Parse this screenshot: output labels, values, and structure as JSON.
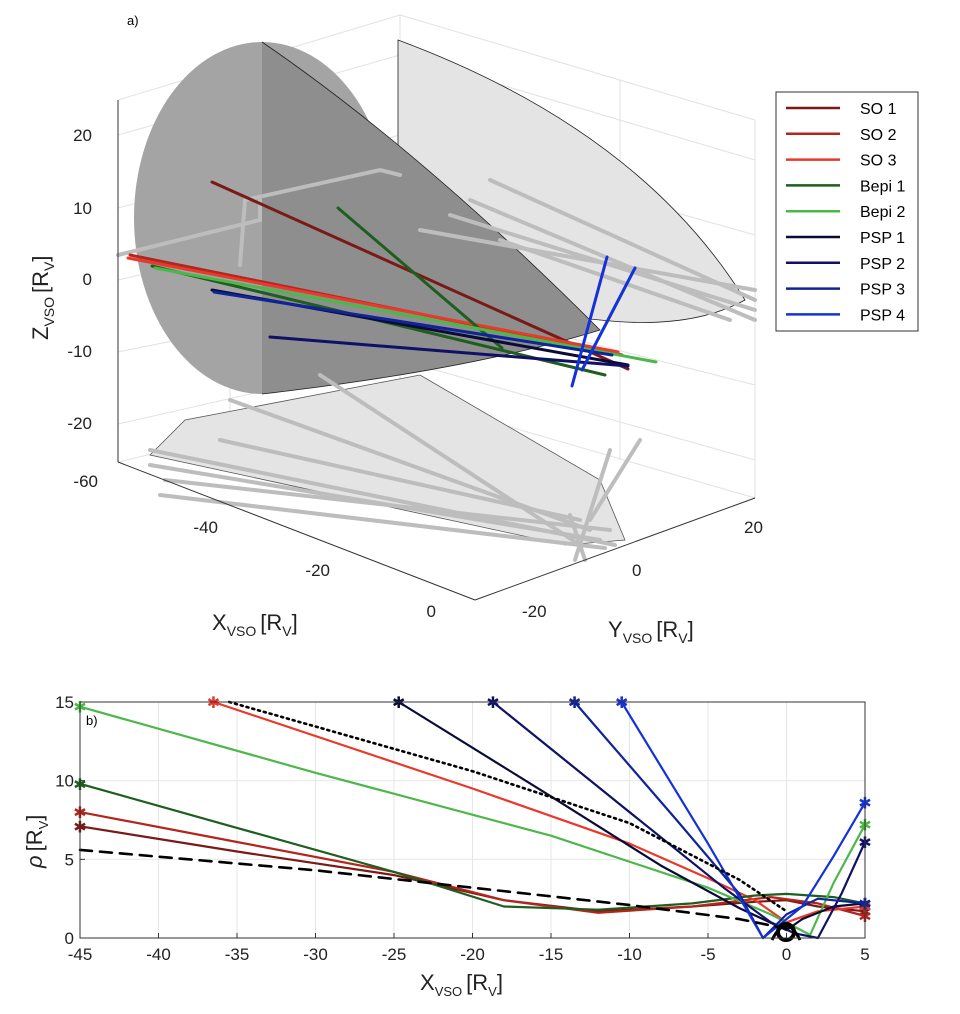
{
  "panel_a": {
    "label": "a)",
    "x_label": "X",
    "x_sub": "VSO",
    "x_unit": "[R",
    "x_unit_sub": "V",
    "x_close": "]",
    "y_label": "Y",
    "y_sub": "VSO",
    "z_label": "Z",
    "z_sub": "VSO",
    "z_ticks": [
      "20",
      "10",
      "0",
      "-10",
      "-20"
    ],
    "x_ticks": [
      "-60",
      "-40",
      "-20",
      "0"
    ],
    "y_ticks": [
      "-20",
      "0",
      "20"
    ]
  },
  "legend": [
    {
      "name": "SO 1",
      "color": "#7a1a16"
    },
    {
      "name": "SO 2",
      "color": "#b3261e"
    },
    {
      "name": "SO 3",
      "color": "#e8392c"
    },
    {
      "name": "Bepi 1",
      "color": "#1e5e1e"
    },
    {
      "name": "Bepi 2",
      "color": "#4db84a"
    },
    {
      "name": "PSP 1",
      "color": "#0b0b3a"
    },
    {
      "name": "PSP 2",
      "color": "#101066"
    },
    {
      "name": "PSP 3",
      "color": "#10249a"
    },
    {
      "name": "PSP 4",
      "color": "#1432d8"
    }
  ],
  "panel_b": {
    "label": "b)",
    "x_label": "X",
    "x_sub": "VSO",
    "y_label": "ρ",
    "unit_open": "[R",
    "unit_sub": "V",
    "unit_close": "]"
  },
  "chart_data": [
    {
      "type": "line",
      "title": "",
      "projection": "3d",
      "xlabel": "X_VSO [R_V]",
      "ylabel": "Y_VSO [R_V]",
      "zlabel": "Z_VSO [R_V]",
      "xlim": [
        -60,
        5
      ],
      "ylim": [
        -25,
        25
      ],
      "zlim": [
        -25,
        25
      ],
      "grid": true,
      "legend_position": "outside-right",
      "series": [
        {
          "name": "SO 1"
        },
        {
          "name": "SO 2"
        },
        {
          "name": "SO 3"
        },
        {
          "name": "Bepi 1"
        },
        {
          "name": "Bepi 2"
        },
        {
          "name": "PSP 1"
        },
        {
          "name": "PSP 2"
        },
        {
          "name": "PSP 3"
        },
        {
          "name": "PSP 4"
        }
      ]
    },
    {
      "type": "line",
      "title": "",
      "xlabel": "X_VSO [R_V]",
      "ylabel": "ρ [R_V]",
      "xlim": [
        -45,
        5
      ],
      "ylim": [
        0,
        15
      ],
      "grid": true,
      "xticks": [
        -45,
        -40,
        -35,
        -30,
        -25,
        -20,
        -15,
        -10,
        -5,
        0,
        5
      ],
      "yticks": [
        0,
        5,
        10,
        15
      ],
      "series": [
        {
          "name": "SO 1",
          "color": "#7a1a16",
          "points": [
            [
              -45,
              7.1
            ],
            [
              -35,
              5.5
            ],
            [
              -25,
              4.0
            ],
            [
              -18,
              2.4
            ],
            [
              -12,
              1.7
            ],
            [
              -6,
              2.0
            ],
            [
              -2,
              2.3
            ],
            [
              0,
              2.4
            ],
            [
              2,
              2.0
            ],
            [
              5,
              1.7
            ]
          ]
        },
        {
          "name": "SO 2",
          "color": "#b3261e",
          "points": [
            [
              -45,
              8.0
            ],
            [
              -35,
              6.1
            ],
            [
              -25,
              4.2
            ],
            [
              -18,
              2.4
            ],
            [
              -12,
              1.6
            ],
            [
              -6,
              2.0
            ],
            [
              -1,
              2.6
            ],
            [
              2,
              2.2
            ],
            [
              5,
              1.4
            ]
          ]
        },
        {
          "name": "SO 3",
          "color": "#e8392c",
          "points": [
            [
              -36.5,
              15
            ],
            [
              -20,
              9.5
            ],
            [
              -10,
              6.0
            ],
            [
              -5,
              3.8
            ],
            [
              -2,
              2.4
            ],
            [
              0,
              1.0
            ],
            [
              2,
              1.7
            ],
            [
              5,
              2.0
            ]
          ]
        },
        {
          "name": "Bepi 1",
          "color": "#1e5e1e",
          "points": [
            [
              -45,
              9.8
            ],
            [
              -35,
              7.0
            ],
            [
              -25,
              4.2
            ],
            [
              -18,
              2.0
            ],
            [
              -12,
              1.8
            ],
            [
              -6,
              2.2
            ],
            [
              -2,
              2.7
            ],
            [
              0,
              2.8
            ],
            [
              3,
              2.6
            ],
            [
              5,
              2.2
            ]
          ]
        },
        {
          "name": "Bepi 2",
          "color": "#4db84a",
          "points": [
            [
              -45,
              14.7
            ],
            [
              -30,
              10.5
            ],
            [
              -15,
              6.5
            ],
            [
              -5,
              3.2
            ],
            [
              -1,
              1.5
            ],
            [
              1.5,
              0.2
            ],
            [
              3,
              3.5
            ],
            [
              5,
              7.2
            ]
          ]
        },
        {
          "name": "PSP 1",
          "color": "#0b0b3a",
          "points": [
            [
              -24.7,
              15
            ],
            [
              -15,
              9.0
            ],
            [
              -8,
              4.6
            ],
            [
              -3,
              1.9
            ],
            [
              0,
              0.5
            ],
            [
              1,
              1.2
            ],
            [
              3,
              2.0
            ],
            [
              5,
              2.2
            ]
          ]
        },
        {
          "name": "PSP 2",
          "color": "#101066",
          "points": [
            [
              -18.7,
              15
            ],
            [
              -10,
              8.0
            ],
            [
              -4,
              3.2
            ],
            [
              -1,
              1.0
            ],
            [
              0.5,
              0.3
            ],
            [
              2,
              0.0
            ],
            [
              3.5,
              2.8
            ],
            [
              5,
              6.1
            ]
          ]
        },
        {
          "name": "PSP 3",
          "color": "#10249a",
          "points": [
            [
              -13.5,
              15
            ],
            [
              -7,
              7.5
            ],
            [
              -3,
              2.8
            ],
            [
              -1.5,
              0.0
            ],
            [
              0,
              1.5
            ],
            [
              2,
              2.5
            ],
            [
              5,
              2.2
            ]
          ]
        },
        {
          "name": "PSP 4",
          "color": "#1432d8",
          "points": [
            [
              -10.5,
              15
            ],
            [
              -5,
              6.0
            ],
            [
              -1.5,
              0.0
            ],
            [
              1,
              2.0
            ],
            [
              3,
              5.2
            ],
            [
              5,
              8.6
            ]
          ]
        },
        {
          "name": "",
          "style": "dotted",
          "color": "#000000",
          "points": [
            [
              -35.5,
              15
            ],
            [
              -20,
              10.6
            ],
            [
              -10,
              7.3
            ],
            [
              -3,
              3.7
            ],
            [
              0,
              1.7
            ]
          ]
        },
        {
          "name": "",
          "style": "dashed",
          "color": "#000000",
          "points": [
            [
              -45,
              5.6
            ],
            [
              -30,
              4.3
            ],
            [
              -20,
              3.2
            ],
            [
              -10,
              2.1
            ],
            [
              -3,
              1.2
            ],
            [
              0,
              0.6
            ]
          ]
        }
      ]
    }
  ]
}
